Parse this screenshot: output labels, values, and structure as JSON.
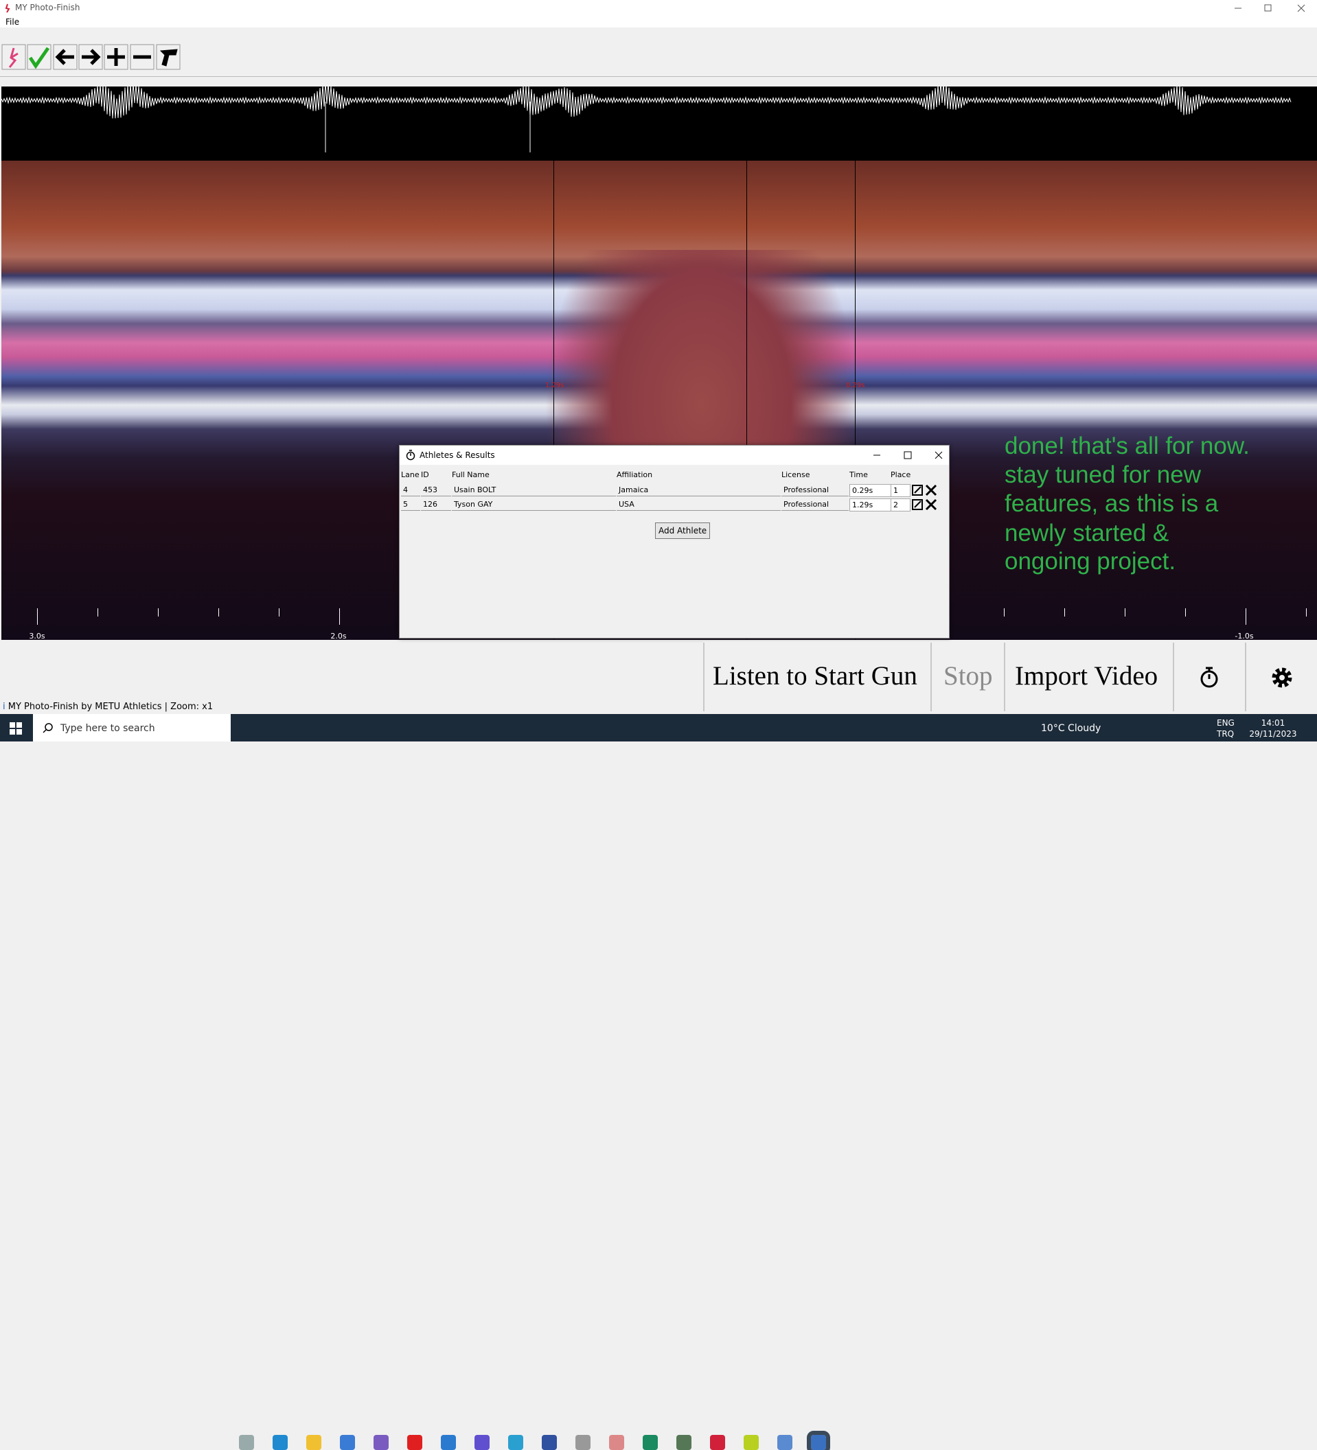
{
  "window": {
    "title": "MY Photo-Finish",
    "menu": [
      "File"
    ]
  },
  "timeline": {
    "labels": [
      "3.0s",
      "2.0s",
      "-1.0s"
    ],
    "markers": [
      "1.29s",
      "0.29s"
    ]
  },
  "dialog": {
    "title": "Athletes & Results",
    "headers": [
      "Lane",
      "ID",
      "Full Name",
      "Affiliation",
      "License",
      "Time",
      "Place"
    ],
    "rows": [
      [
        "4",
        "453",
        "Usain BOLT",
        "Jamaica",
        "Professional",
        "0.29s",
        "1"
      ],
      [
        "5",
        "126",
        "Tyson GAY",
        "USA",
        "Professional",
        "1.29s",
        "2"
      ]
    ],
    "button": "Add Athlete"
  },
  "note": {
    "lines": [
      "done! that's all for now.",
      "stay tuned for new",
      "features, as this is a",
      "newly started &",
      "ongoing project."
    ]
  },
  "controls": {
    "buttons": [
      "Listen to Start Gun",
      "Stop",
      "Import Video"
    ]
  },
  "status": "MY Photo-Finish by METU Athletics  | Zoom: x1",
  "taskbar": {
    "search": "Type here to search",
    "weather": "10°C  Cloudy",
    "language": [
      "ENG",
      "TRQ"
    ],
    "time": "14:01",
    "date": "29/11/2023"
  }
}
